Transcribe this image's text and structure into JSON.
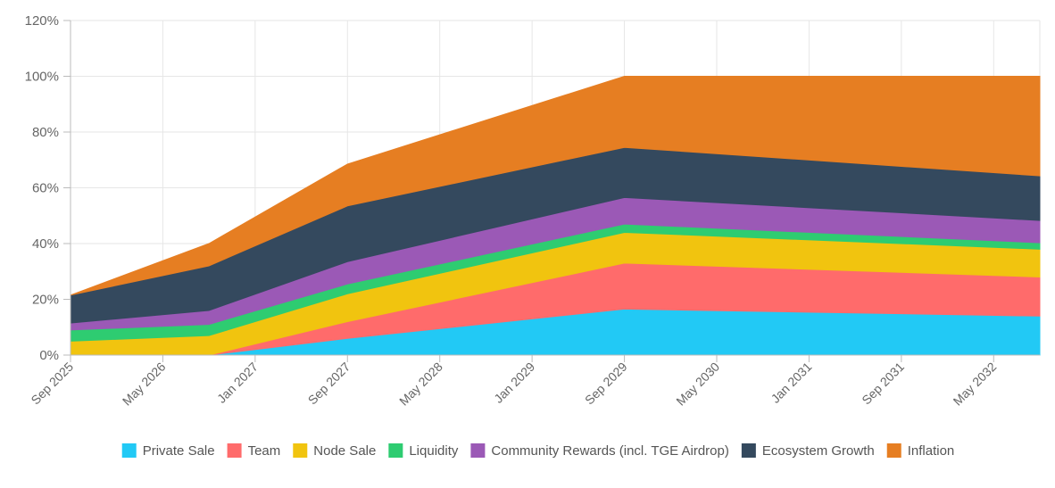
{
  "chart_data": {
    "type": "area",
    "stacked": true,
    "title": "",
    "xlabel": "",
    "ylabel": "",
    "x": [
      "2025-09",
      "2026-09",
      "2027-09",
      "2029-09",
      "2032-09"
    ],
    "x_ticks": [
      "Sep 2025",
      "May 2026",
      "Jan 2027",
      "Sep 2027",
      "May 2028",
      "Jan 2029",
      "Sep 2029",
      "May 2030",
      "Jan 2031",
      "Sep 2031",
      "May 2032"
    ],
    "y_ticks": [
      "0%",
      "20%",
      "40%",
      "60%",
      "80%",
      "100%",
      "120%"
    ],
    "ylim": [
      0,
      120
    ],
    "grid": true,
    "legend_position": "bottom",
    "series": [
      {
        "name": "Private Sale",
        "color": "#22c9f5",
        "values": [
          0,
          0,
          6,
          16.5,
          14
        ]
      },
      {
        "name": "Team",
        "color": "#ff6b6b",
        "values": [
          0,
          0,
          6,
          16.5,
          14
        ]
      },
      {
        "name": "Node Sale",
        "color": "#f1c40f",
        "values": [
          5,
          7,
          10,
          11,
          10
        ]
      },
      {
        "name": "Liquidity",
        "color": "#2ecc71",
        "values": [
          4,
          4,
          3.5,
          3,
          2.3
        ]
      },
      {
        "name": "Community Rewards (incl. TGE Airdrop)",
        "color": "#9b59b6",
        "values": [
          2.5,
          5,
          8,
          9.5,
          8
        ]
      },
      {
        "name": "Ecosystem Growth",
        "color": "#34495e",
        "values": [
          10,
          16,
          20,
          18,
          16
        ]
      },
      {
        "name": "Inflation",
        "color": "#e67e22",
        "values": [
          0,
          8,
          15,
          25.5,
          35.7
        ]
      }
    ]
  }
}
